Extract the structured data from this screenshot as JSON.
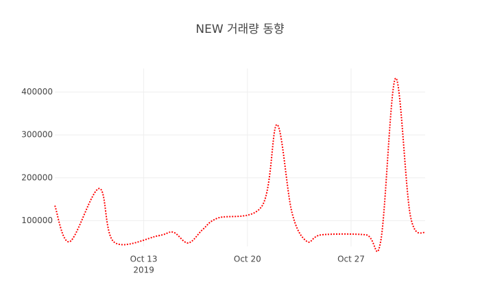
{
  "chart_data": {
    "type": "line",
    "title": "NEW 거래량 동향",
    "x": [
      "2019-10-07",
      "2019-10-08",
      "2019-10-10",
      "2019-10-11",
      "2019-10-14",
      "2019-10-15",
      "2019-10-16",
      "2019-10-17",
      "2019-10-18",
      "2019-10-21",
      "2019-10-22",
      "2019-10-23",
      "2019-10-24",
      "2019-10-25",
      "2019-10-28",
      "2019-10-29",
      "2019-10-30",
      "2019-10-31",
      "2019-11-01"
    ],
    "series": [
      {
        "color": "#ff0000",
        "dash": "dot",
        "values": [
          135000,
          51000,
          175000,
          50000,
          65000,
          73000,
          48000,
          80000,
          106000,
          135000,
          324000,
          120000,
          52000,
          67000,
          67000,
          52000,
          432000,
          112000,
          71000
        ]
      }
    ],
    "xlim": [
      "2019-10-07",
      "2019-11-01"
    ],
    "xticks": [
      {
        "value": "2019-10-13",
        "label": "Oct 13"
      },
      {
        "value": "2019-10-20",
        "label": "Oct 20"
      },
      {
        "value": "2019-10-27",
        "label": "Oct 27"
      }
    ],
    "x_year_label": "2019",
    "ylim": [
      40000,
      455000
    ],
    "yticks": [
      100000,
      200000,
      300000,
      400000
    ],
    "grid": true
  }
}
